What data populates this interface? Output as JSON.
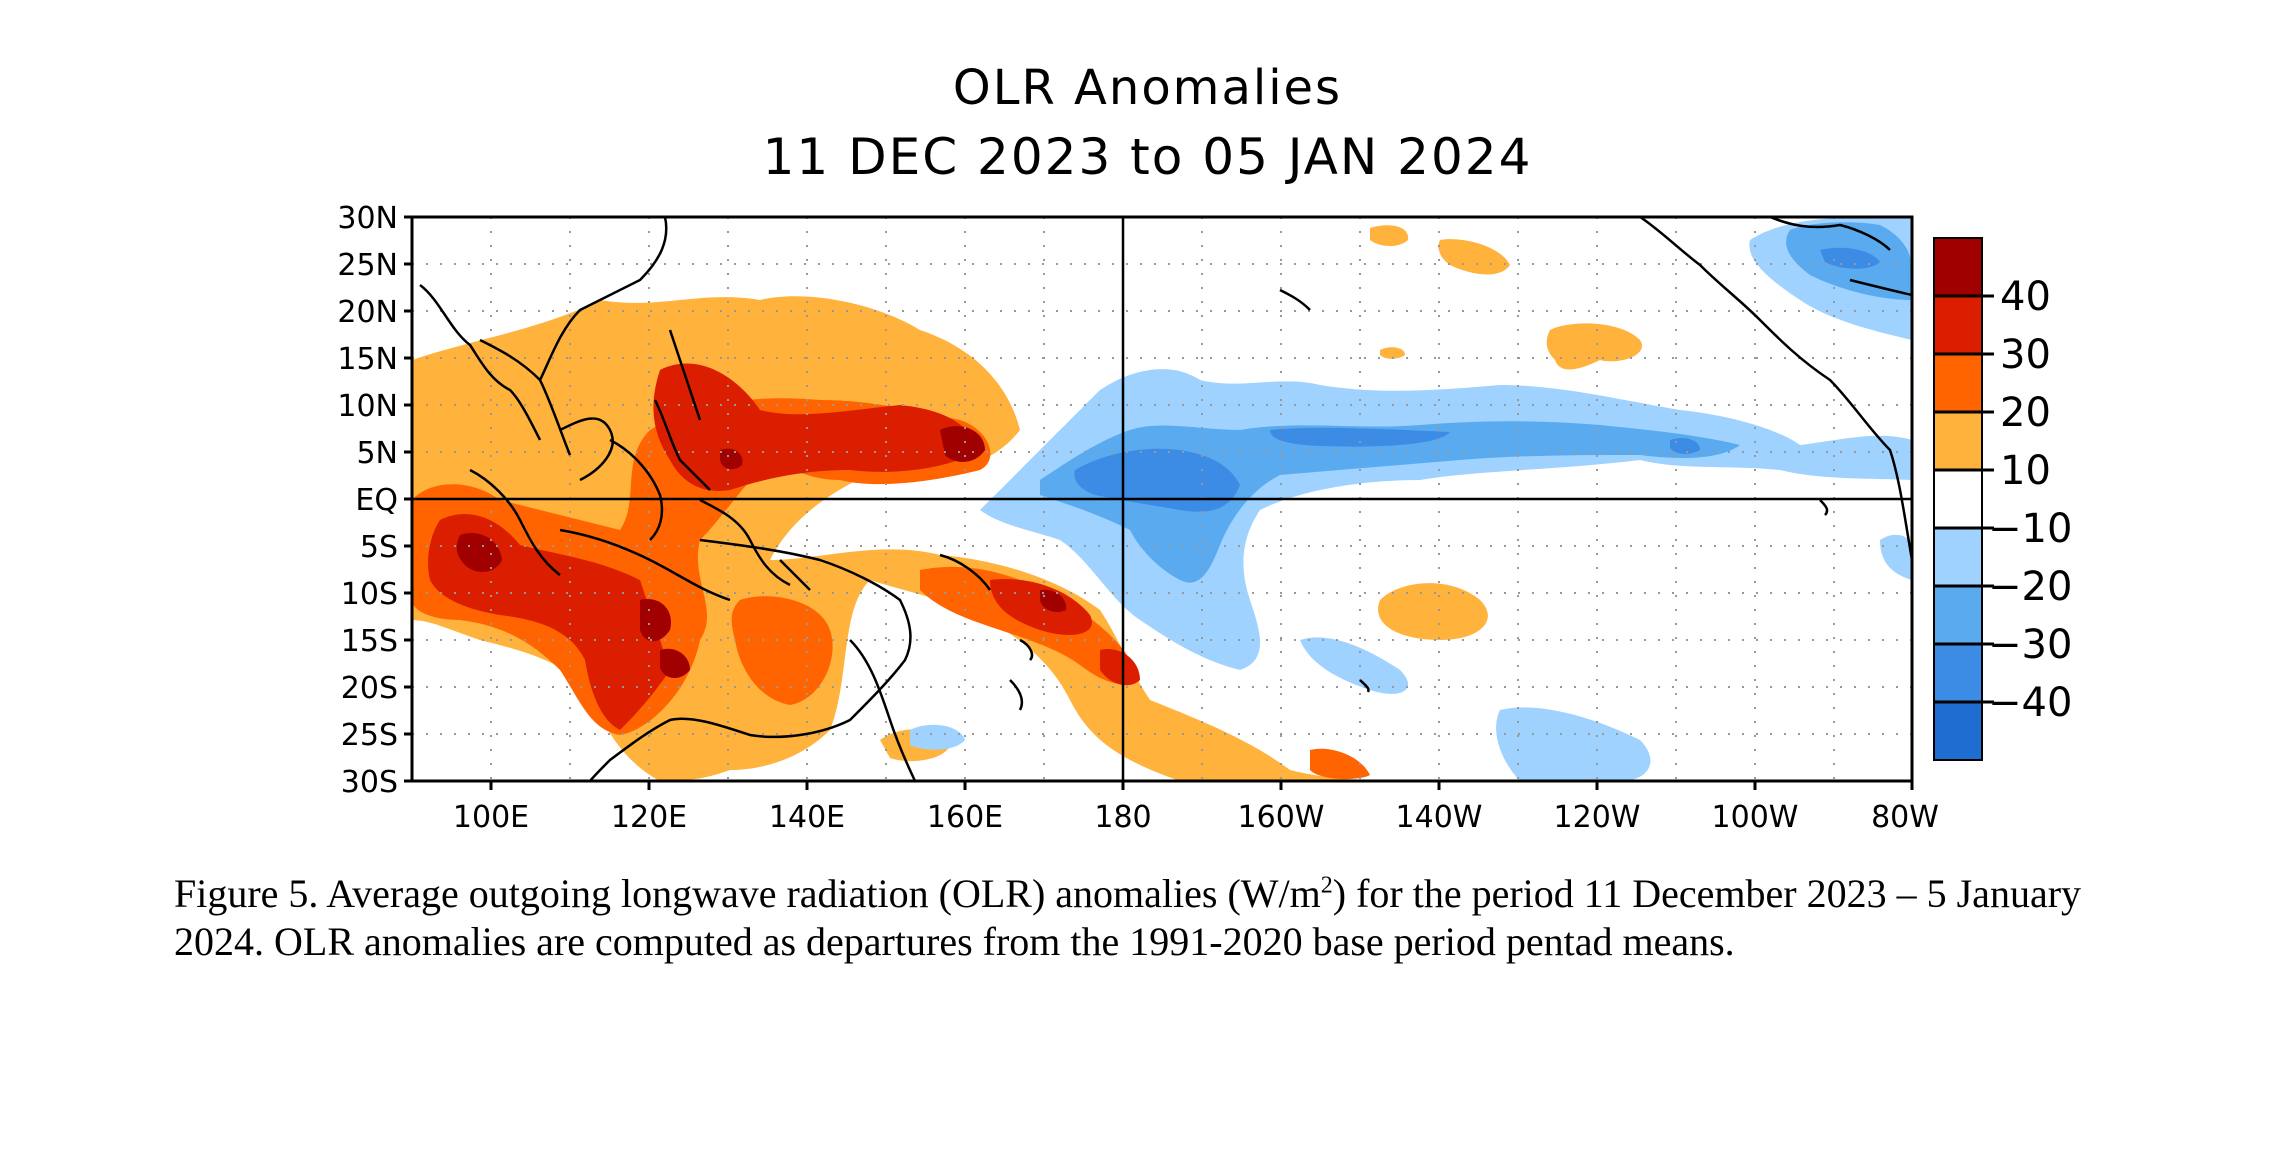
{
  "title": {
    "line1": "OLR Anomalies",
    "line2": "11 DEC 2023 to 05 JAN 2024"
  },
  "map": {
    "lat_labels": [
      "30N",
      "25N",
      "20N",
      "15N",
      "10N",
      "5N",
      "EQ",
      "5S",
      "10S",
      "15S",
      "20S",
      "25S",
      "30S"
    ],
    "lon_labels": [
      "100E",
      "120E",
      "140E",
      "160E",
      "180",
      "160W",
      "140W",
      "120W",
      "100W",
      "80W"
    ],
    "extent": {
      "lon_west": 90,
      "lon_east": 280,
      "lat_south": -30,
      "lat_north": 30
    },
    "colorbar": {
      "labels": [
        "40",
        "30",
        "20",
        "10",
        "−10",
        "−20",
        "−30",
        "−40"
      ],
      "colors": [
        "#a00000",
        "#dc1e00",
        "#ff6400",
        "#ffb23c",
        "#ffffff",
        "#a0d2ff",
        "#5aaaf0",
        "#3c8ce6",
        "#1e6ed2"
      ]
    },
    "anomaly_colors": {
      "pos10": "#ffb23c",
      "pos20": "#ff6400",
      "pos30": "#dc1e00",
      "pos40": "#a00000",
      "neg10": "#a0d2ff",
      "neg20": "#5aaaf0",
      "neg30": "#3c8ce6"
    }
  },
  "caption": {
    "part1": "Figure 5. Average outgoing longwave radiation (OLR) anomalies (W/m",
    "sup": "2",
    "part2": ") for the period 11 December 2023 – 5 January 2024.  OLR anomalies are computed as departures from the 1991-2020 base period pentad means."
  }
}
